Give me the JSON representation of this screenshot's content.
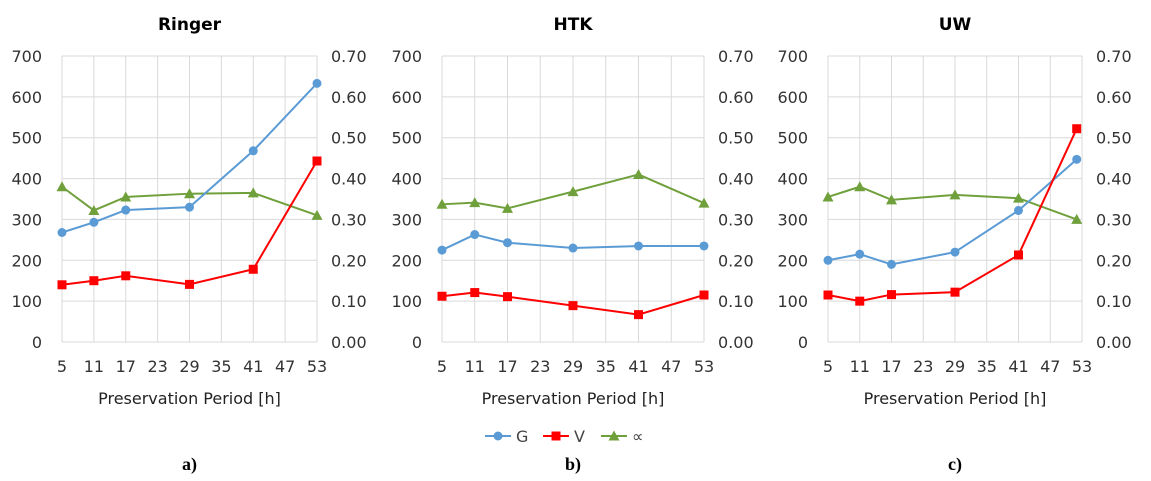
{
  "chart_data": [
    {
      "type": "line",
      "title": "Ringer",
      "caption": "a)",
      "xlabel": "Preservation Period [h]",
      "x_ticks": [
        5,
        11,
        17,
        23,
        29,
        35,
        41,
        47,
        53
      ],
      "x": [
        5,
        11,
        17,
        29,
        41,
        53
      ],
      "left_axis": {
        "ylim": [
          0,
          700
        ],
        "ticks": [
          "0",
          "100",
          "200",
          "300",
          "400",
          "500",
          "600",
          "700"
        ]
      },
      "right_axis": {
        "ylim": [
          0,
          0.7
        ],
        "ticks": [
          "0.00",
          "0.10",
          "0.20",
          "0.30",
          "0.40",
          "0.50",
          "0.60",
          "0.70"
        ]
      },
      "grid": true,
      "series": [
        {
          "name": "G",
          "axis": "left",
          "values": [
            268,
            293,
            323,
            330,
            468,
            633
          ]
        },
        {
          "name": "V",
          "axis": "left",
          "values": [
            140,
            150,
            162,
            141,
            178,
            443
          ]
        },
        {
          "name": "∝",
          "axis": "right",
          "values": [
            0.38,
            0.322,
            0.355,
            0.363,
            0.365,
            0.31
          ]
        }
      ]
    },
    {
      "type": "line",
      "title": "HTK",
      "caption": "b)",
      "xlabel": "Preservation Period [h]",
      "x_ticks": [
        5,
        11,
        17,
        23,
        29,
        35,
        41,
        47,
        53
      ],
      "x": [
        5,
        11,
        17,
        29,
        41,
        53
      ],
      "left_axis": {
        "ylim": [
          0,
          700
        ],
        "ticks": [
          "0",
          "100",
          "200",
          "300",
          "400",
          "500",
          "600",
          "700"
        ]
      },
      "right_axis": {
        "ylim": [
          0,
          0.7
        ],
        "ticks": [
          "0.00",
          "0.10",
          "0.20",
          "0.30",
          "0.40",
          "0.50",
          "0.60",
          "0.70"
        ]
      },
      "grid": true,
      "series": [
        {
          "name": "G",
          "axis": "left",
          "values": [
            225,
            263,
            243,
            230,
            235,
            235
          ]
        },
        {
          "name": "V",
          "axis": "left",
          "values": [
            112,
            121,
            111,
            89,
            67,
            115
          ]
        },
        {
          "name": "∝",
          "axis": "right",
          "values": [
            0.337,
            0.341,
            0.327,
            0.368,
            0.41,
            0.34
          ]
        }
      ]
    },
    {
      "type": "line",
      "title": "UW",
      "caption": "c)",
      "xlabel": "Preservation Period [h]",
      "x_ticks": [
        5,
        11,
        17,
        23,
        29,
        35,
        41,
        47,
        53
      ],
      "x": [
        5,
        11,
        17,
        29,
        41,
        52
      ],
      "left_axis": {
        "ylim": [
          0,
          700
        ],
        "ticks": [
          "0",
          "100",
          "200",
          "300",
          "400",
          "500",
          "600",
          "700"
        ]
      },
      "right_axis": {
        "ylim": [
          0,
          0.7
        ],
        "ticks": [
          "0.00",
          "0.10",
          "0.20",
          "0.30",
          "0.40",
          "0.50",
          "0.60",
          "0.70"
        ]
      },
      "grid": true,
      "series": [
        {
          "name": "G",
          "axis": "left",
          "values": [
            200,
            215,
            190,
            220,
            322,
            447
          ]
        },
        {
          "name": "V",
          "axis": "left",
          "values": [
            115,
            100,
            116,
            122,
            213,
            522
          ]
        },
        {
          "name": "∝",
          "axis": "right",
          "values": [
            0.355,
            0.38,
            0.348,
            0.36,
            0.352,
            0.3
          ]
        }
      ]
    }
  ],
  "legend": {
    "placement": "bottom-center",
    "items": [
      {
        "label": "G",
        "color": "#5b9bd5",
        "marker": "circle"
      },
      {
        "label": "V",
        "color": "#ff0000",
        "marker": "square"
      },
      {
        "label": "∝",
        "color": "#70a03c",
        "marker": "triangle"
      }
    ]
  }
}
